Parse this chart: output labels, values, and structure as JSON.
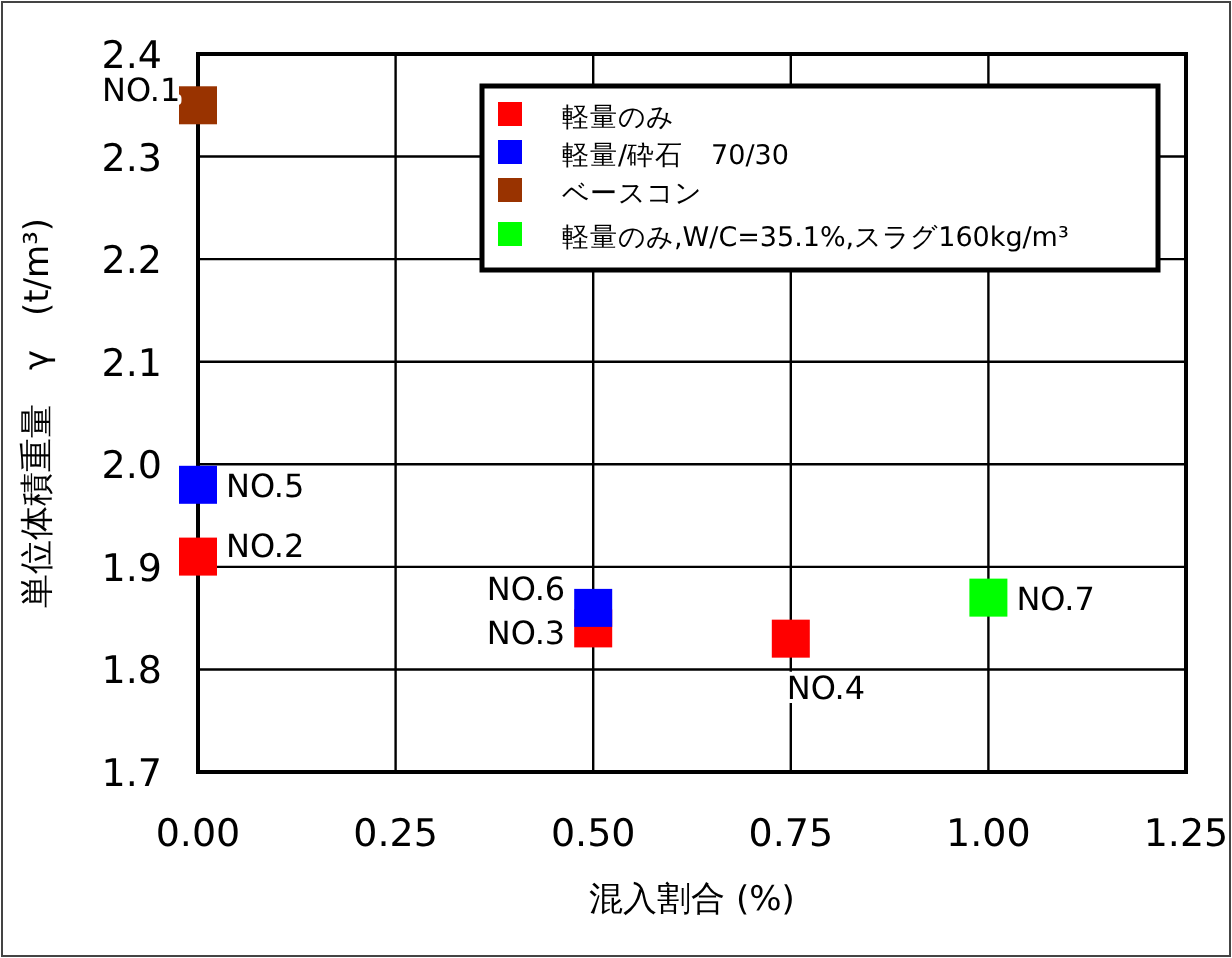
{
  "chart_data": {
    "type": "scatter",
    "xlabel": "混入割合 (%)",
    "ylabel": "単位体積重量　γ　(t/m³)",
    "xlim": [
      0,
      1.25
    ],
    "xticks": [
      {
        "value": 0,
        "label": "0.00"
      },
      {
        "value": 0.25,
        "label": "0.25"
      },
      {
        "value": 0.5,
        "label": "0.50"
      },
      {
        "value": 0.75,
        "label": "0.75"
      },
      {
        "value": 1,
        "label": "1.00"
      },
      {
        "value": 1.25,
        "label": "1.25"
      }
    ],
    "ylim": [
      1.7,
      2.4
    ],
    "yticks": [
      1.7,
      1.8,
      1.9,
      {
        "value": 2.0,
        "label": "2.0"
      },
      2.1,
      2.2,
      2.3,
      2.4
    ],
    "grid": true,
    "legend": "top right",
    "marker": "square",
    "series": [
      {
        "name": "軽量のみ",
        "color": "#ff0000",
        "x": [
          0,
          0.5,
          0.75
        ],
        "values": [
          1.91,
          1.84,
          1.83
        ]
      },
      {
        "name": "軽量/砕石　70/30",
        "color": "#0000ff",
        "x": [
          0,
          0.5
        ],
        "values": [
          1.98,
          1.86
        ]
      },
      {
        "name": "ベースコン",
        "color": "#993300",
        "x": [
          0
        ],
        "values": [
          2.35
        ]
      },
      {
        "name": "軽量のみ,W/C=35.1%,スラグ160kg/m³",
        "color": "#00ff00",
        "x": [
          1
        ],
        "values": [
          1.87
        ]
      }
    ],
    "annotations": [
      {
        "text": "NO.1",
        "x": 0,
        "y": 2.35
      },
      {
        "text": "NO.2",
        "x": 0,
        "y": 1.91
      },
      {
        "text": "NO.3",
        "x": 0.5,
        "y": 1.84
      },
      {
        "text": "NO.4",
        "x": 0.75,
        "y": 1.83
      },
      {
        "text": "NO.5",
        "x": 0,
        "y": 1.98
      },
      {
        "text": "NO.6",
        "x": 0.5,
        "y": 1.86
      },
      {
        "text": "NO.7",
        "x": 1,
        "y": 1.87
      }
    ]
  }
}
